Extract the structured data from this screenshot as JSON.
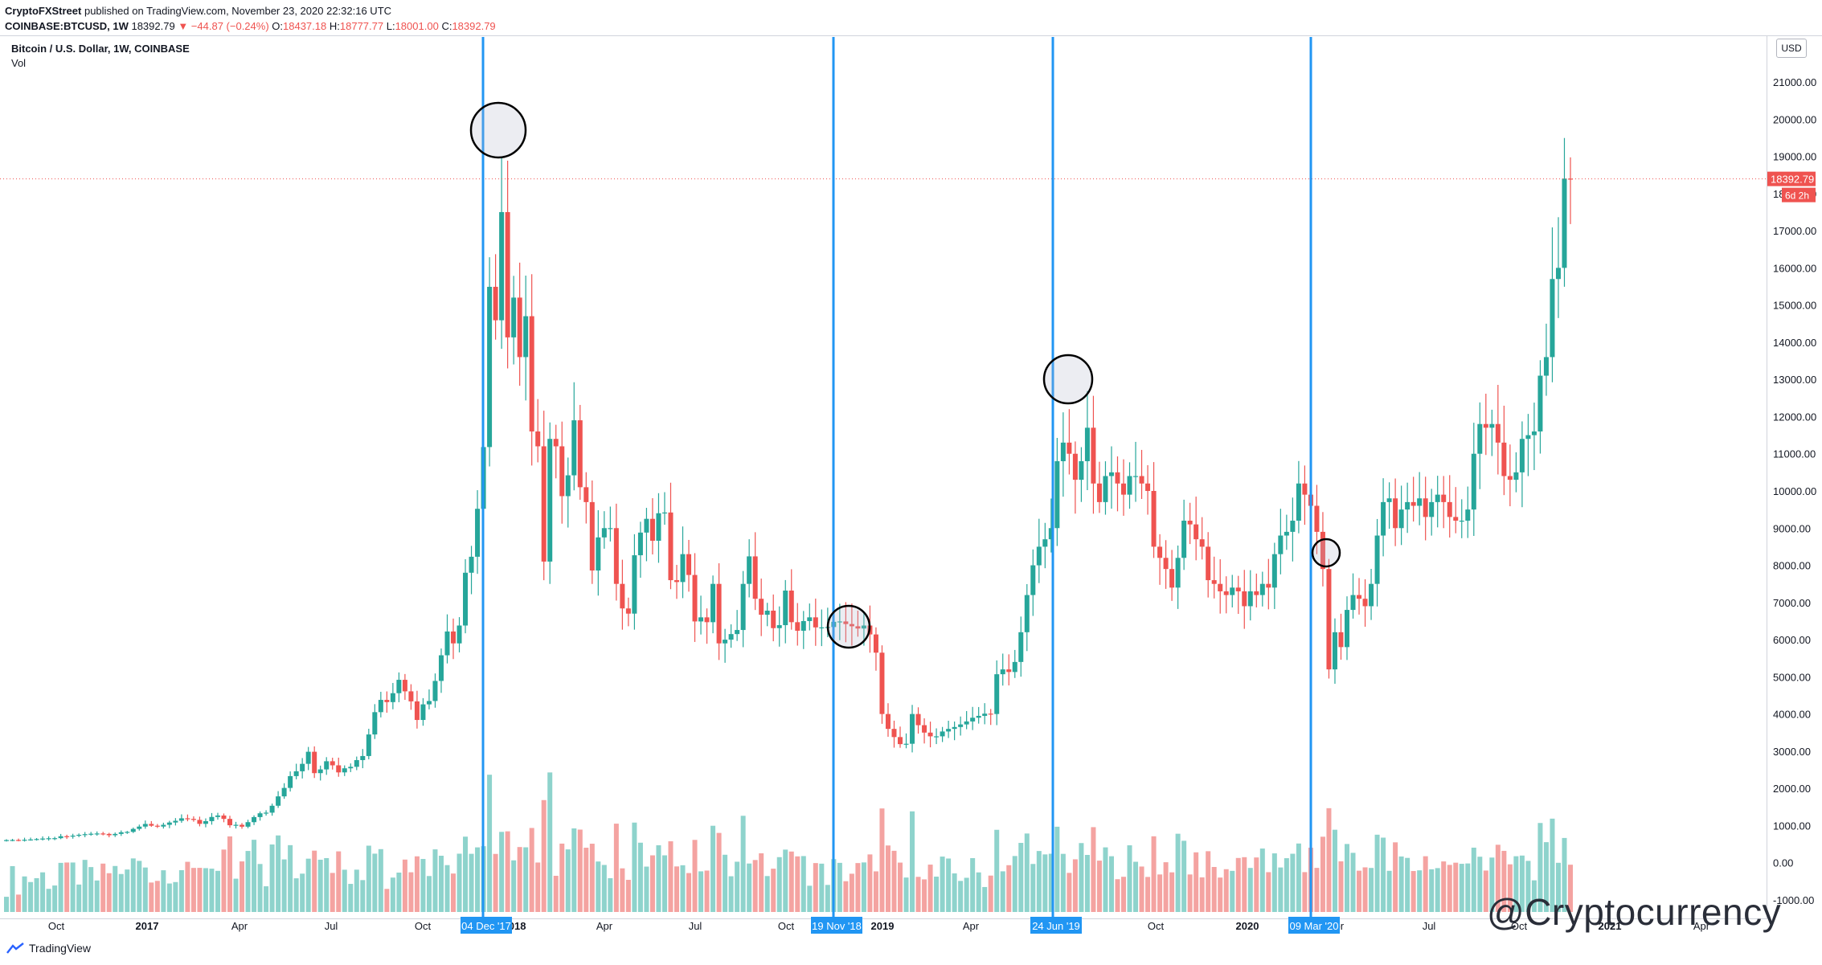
{
  "header": {
    "publisher": "CryptoFXStreet",
    "published_text": " published on TradingView.com, November 23, 2020 22:32:16 UTC",
    "symbol": "COINBASE:BTCUSD, 1W",
    "price": "18392.79",
    "change": "▼ −44.87 (−0.24%)",
    "ohlc": {
      "o_label": "O:",
      "o": "18437.18",
      "h_label": "H:",
      "h": "18777.77",
      "l_label": "L:",
      "l": "18001.00",
      "c_label": "C:",
      "c": "18392.79"
    }
  },
  "chart_title": "Bitcoin / U.S. Dollar, 1W, COINBASE",
  "vol_label": "Vol",
  "currency_button": "USD",
  "footer_brand": "TradingView",
  "watermark": "@Cryptocurrency",
  "colors": {
    "up": "#26a69a",
    "down": "#ef5350",
    "vol_up": "#8ed3cc",
    "vol_down": "#f4a3a1",
    "marker_line": "#2196f3",
    "grid": "#e9ecf1"
  },
  "chart_data": {
    "type": "candlestick",
    "title": "Bitcoin / U.S. Dollar, 1W, COINBASE",
    "y_ticks": [
      "21000.00",
      "20000.00",
      "19000.00",
      "18000.00",
      "17000.00",
      "16000.00",
      "15000.00",
      "14000.00",
      "13000.00",
      "12000.00",
      "11000.00",
      "10000.00",
      "9000.00",
      "8000.00",
      "7000.00",
      "6000.00",
      "5000.00",
      "4000.00",
      "3000.00",
      "2000.00",
      "1000.00",
      "0.00",
      "-1000.00"
    ],
    "x_ticks": [
      "Oct",
      "2017",
      "Apr",
      "Jul",
      "Oct",
      "2018",
      "Apr",
      "Jul",
      "Oct",
      "2019",
      "Apr",
      "Oct",
      "2020",
      "Apr",
      "Jul",
      "Oct",
      "2021",
      "Apr"
    ],
    "last_price_label": "18392.79",
    "countdown_label": "6d 2h",
    "markers": [
      {
        "date": "04 Dec '17",
        "circled_price": 19400
      },
      {
        "date": "19 Nov '18",
        "circled_price": 6200
      },
      {
        "date": "24 Jun '19",
        "circled_price": 12800
      },
      {
        "date": "09 Mar '20",
        "circled_price": 8000
      }
    ],
    "close_series_weekly": [
      609,
      612,
      611,
      618,
      626,
      638,
      651,
      659,
      661,
      713,
      703,
      729,
      751,
      768,
      780,
      787,
      775,
      740,
      775,
      820,
      830,
      910,
      972,
      1043,
      996,
      973,
      1020,
      1082,
      1128,
      1195,
      1180,
      1152,
      1046,
      1119,
      1231,
      1270,
      1179,
      1008,
      1020,
      970,
      1091,
      1228,
      1330,
      1347,
      1533,
      1785,
      2012,
      2330,
      2460,
      2660,
      2985,
      2410,
      2510,
      2730,
      2620,
      2430,
      2540,
      2580,
      2760,
      2870,
      3450,
      4050,
      4380,
      4320,
      4560,
      4920,
      4610,
      4340,
      3840,
      4260,
      4350,
      4890,
      5580,
      6220,
      5900,
      6380,
      7800,
      8230,
      9520,
      11180,
      15490,
      14590,
      17500,
      14130,
      15200,
      13600,
      14700,
      11600,
      11200,
      8100,
      11400,
      11200,
      9860,
      10420,
      11900,
      10100,
      9700,
      7860,
      8750,
      9000,
      9000,
      7500,
      6840,
      6700,
      8270,
      8880,
      9250,
      8660,
      9400,
      9420,
      7600,
      7550,
      8300,
      7740,
      6490,
      6600,
      6470,
      7500,
      5900,
      6000,
      6150,
      6260,
      7500,
      8240,
      7100,
      6670,
      6780,
      6310,
      6390,
      7320,
      6470,
      6240,
      6500,
      6600,
      6330,
      6330,
      6340,
      6480,
      6490,
      6420,
      6360,
      6300,
      6380,
      6140,
      5650,
      4000,
      3600,
      3380,
      3190,
      3200,
      4000,
      3700,
      3500,
      3400,
      3400,
      3530,
      3600,
      3650,
      3720,
      3800,
      3900,
      3950,
      4010,
      4000,
      5070,
      5200,
      5130,
      5400,
      6200,
      7200,
      8000,
      8500,
      8700,
      9000,
      10800,
      11300,
      11000,
      10300,
      10800,
      11700,
      10200,
      9700,
      10400,
      10500,
      10200,
      9900,
      10400,
      10400,
      10200,
      10000,
      8500,
      8200,
      7900,
      7400,
      8200,
      9200,
      9100,
      8700,
      8500,
      7600,
      7500,
      7300,
      7200,
      7400,
      7300,
      6900,
      7300,
      7200,
      7500,
      7400,
      8300,
      8800,
      8900,
      9200,
      10200,
      9900,
      9600,
      8900,
      7900,
      5200,
      6200,
      5800,
      6800,
      7200,
      7100,
      6900,
      7500,
      8800,
      9700,
      9800,
      9000,
      9500,
      9700,
      9600,
      9800,
      9300,
      9700,
      9900,
      9700,
      9300,
      9200,
      9200,
      9500,
      11000,
      11800,
      11700,
      11800,
      11300,
      10400,
      10300,
      10500,
      11400,
      11500,
      11600,
      13100,
      13600,
      15700,
      16000,
      18400,
      18393
    ]
  }
}
